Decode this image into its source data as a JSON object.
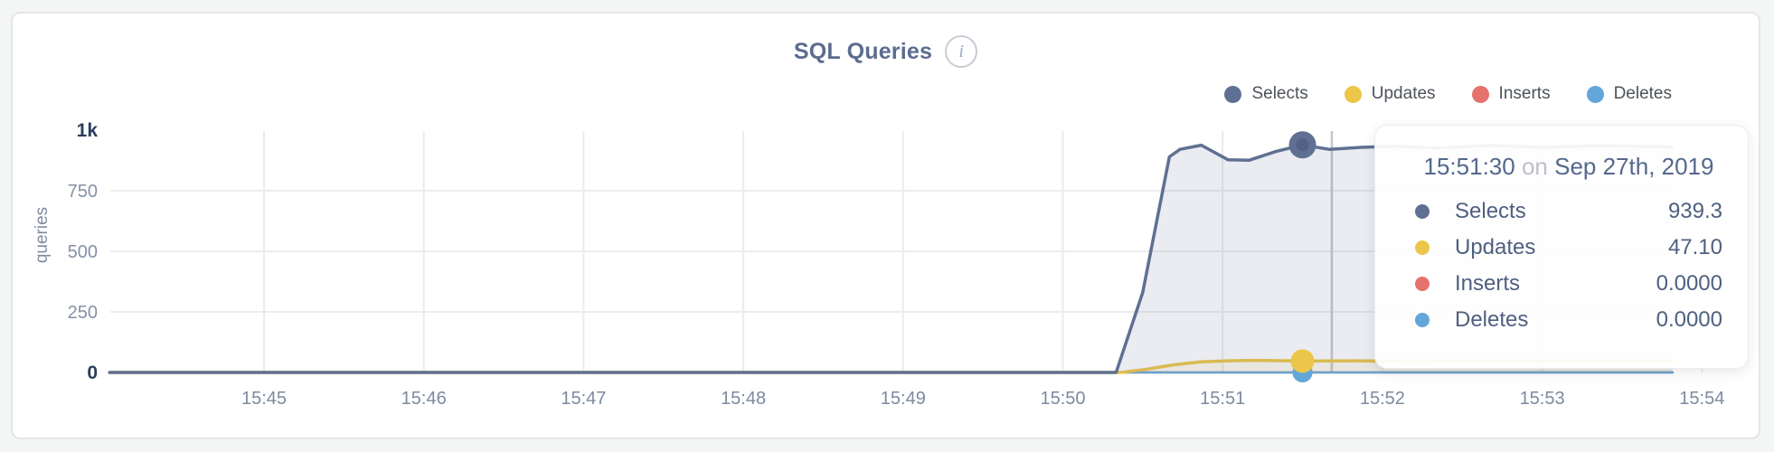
{
  "header": {
    "title": "SQL Queries",
    "info_glyph": "i"
  },
  "legend": {
    "position": "top-right",
    "items": [
      {
        "label": "Selects",
        "color": "#5f7092"
      },
      {
        "label": "Updates",
        "color": "#ecc649"
      },
      {
        "label": "Inserts",
        "color": "#e5726d"
      },
      {
        "label": "Deletes",
        "color": "#62a6da"
      }
    ]
  },
  "y_axis": {
    "title": "queries",
    "ticks": [
      {
        "label": "1k",
        "value": 1000,
        "emphasis": true
      },
      {
        "label": "750",
        "value": 750,
        "emphasis": false
      },
      {
        "label": "500",
        "value": 500,
        "emphasis": false
      },
      {
        "label": "250",
        "value": 250,
        "emphasis": false
      },
      {
        "label": "0",
        "value": 0,
        "emphasis": true
      }
    ]
  },
  "x_axis": {
    "ticks": [
      "15:45",
      "15:46",
      "15:47",
      "15:48",
      "15:49",
      "15:50",
      "15:51",
      "15:52",
      "15:53",
      "15:54"
    ]
  },
  "tooltip": {
    "time": "15:51:30",
    "conjunction": "on",
    "date": "Sep 27th, 2019",
    "rows": [
      {
        "label": "Selects",
        "value": "939.3",
        "color": "#5f7092"
      },
      {
        "label": "Updates",
        "value": "47.10",
        "color": "#ecc649"
      },
      {
        "label": "Inserts",
        "value": "0.0000",
        "color": "#e5726d"
      },
      {
        "label": "Deletes",
        "value": "0.0000",
        "color": "#62a6da"
      }
    ]
  },
  "chart_data": {
    "type": "area",
    "title": "SQL Queries",
    "xlabel": "",
    "ylabel": "queries",
    "ylim": [
      0,
      1000
    ],
    "x_range": [
      "15:44:02",
      "15:54:20"
    ],
    "grid": true,
    "legend_position": "top-right",
    "hover": {
      "snapped_time": "15:51:30",
      "crosshair_time": "15:51:41"
    },
    "series": [
      {
        "name": "Selects",
        "color": "#5f7092",
        "fill_opacity": 0.13,
        "marker_radius": 15,
        "points": [
          [
            "15:44:02",
            0
          ],
          [
            "15:50:20",
            0
          ],
          [
            "15:50:30",
            330
          ],
          [
            "15:50:40",
            890
          ],
          [
            "15:50:44",
            921
          ],
          [
            "15:50:52",
            938
          ],
          [
            "15:51:02",
            878
          ],
          [
            "15:51:10",
            876
          ],
          [
            "15:51:20",
            912
          ],
          [
            "15:51:30",
            939.3
          ],
          [
            "15:51:40",
            921
          ],
          [
            "15:51:52",
            929
          ],
          [
            "15:52:06",
            934
          ],
          [
            "15:52:20",
            926
          ],
          [
            "15:52:40",
            937
          ],
          [
            "15:53:00",
            929
          ],
          [
            "15:53:20",
            936
          ],
          [
            "15:53:49",
            931
          ]
        ]
      },
      {
        "name": "Updates",
        "color": "#ecc649",
        "fill_opacity": 0.1,
        "marker_radius": 13,
        "points": [
          [
            "15:44:02",
            0
          ],
          [
            "15:50:22",
            0
          ],
          [
            "15:50:32",
            14
          ],
          [
            "15:50:42",
            32
          ],
          [
            "15:50:52",
            44
          ],
          [
            "15:51:02",
            48
          ],
          [
            "15:51:12",
            50
          ],
          [
            "15:51:30",
            47.1
          ],
          [
            "15:51:50",
            48
          ],
          [
            "15:52:10",
            46
          ],
          [
            "15:52:40",
            48
          ],
          [
            "15:53:10",
            47
          ],
          [
            "15:53:49",
            47
          ]
        ]
      },
      {
        "name": "Inserts",
        "color": "#e5726d",
        "fill_opacity": 0,
        "marker_radius": 11,
        "points": [
          [
            "15:44:02",
            0
          ],
          [
            "15:53:49",
            0
          ]
        ]
      },
      {
        "name": "Deletes",
        "color": "#62a6da",
        "fill_opacity": 0,
        "marker_radius": 11,
        "points": [
          [
            "15:44:02",
            0
          ],
          [
            "15:53:49",
            0
          ]
        ]
      }
    ]
  }
}
